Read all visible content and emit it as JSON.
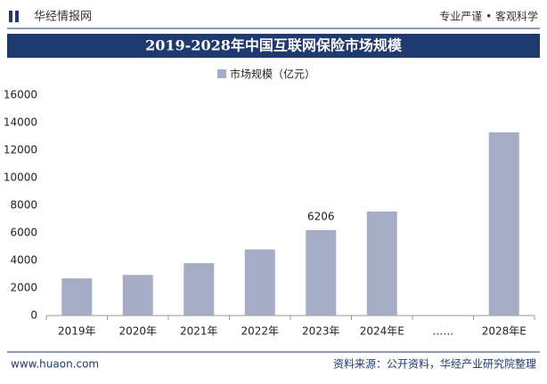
{
  "header": {
    "site_name": "华经情报网",
    "slogan": "专业严谨 • 客观科学"
  },
  "chart_data": {
    "type": "bar",
    "title": "2019-2028年中国互联网保险市场规模",
    "categories": [
      "2019年",
      "2020年",
      "2021年",
      "2022年",
      "2023年",
      "2024年E",
      "……",
      "2028年E"
    ],
    "series": [
      {
        "name": "市场规模（亿元）",
        "color": "#a5adc6",
        "values": [
          2700,
          2950,
          3800,
          4800,
          6206,
          7550,
          null,
          13300
        ]
      }
    ],
    "data_label_index": [
      4
    ],
    "ylim": [
      0,
      16000
    ],
    "yticks": [
      0,
      2000,
      4000,
      6000,
      8000,
      10000,
      12000,
      14000,
      16000
    ],
    "grid": false
  },
  "footer": {
    "url": "www.huaon.com",
    "source": "资料来源：公开资料，华经产业研究院整理"
  }
}
